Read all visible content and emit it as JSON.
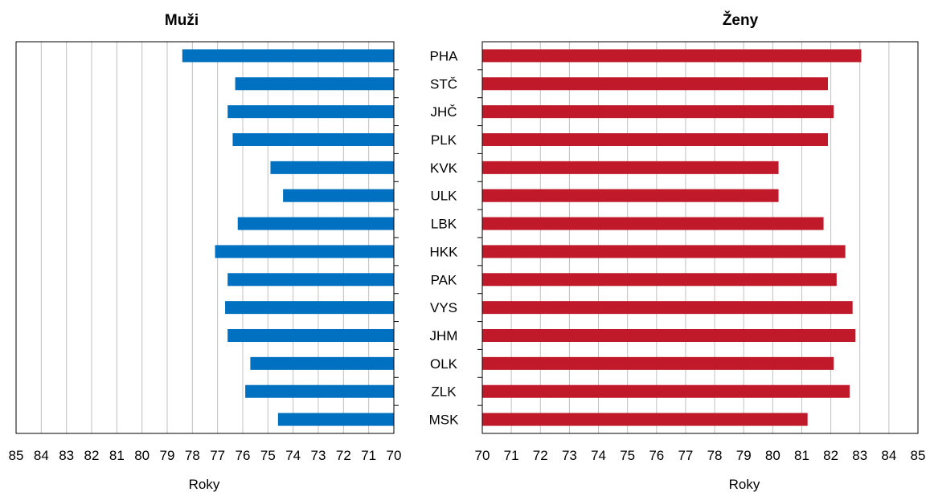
{
  "chart_data": [
    {
      "type": "bar",
      "orientation": "horizontal",
      "x_reversed": true,
      "title": "Muži",
      "xlabel": "Roky",
      "xlim": [
        70,
        85
      ],
      "xticks": [
        "85",
        "84",
        "83",
        "82",
        "81",
        "80",
        "79",
        "78",
        "77",
        "76",
        "75",
        "74",
        "73",
        "72",
        "71",
        "70"
      ],
      "grid": true,
      "color": "#0070c0",
      "categories": [
        "PHA",
        "STČ",
        "JHČ",
        "PLK",
        "KVK",
        "ULK",
        "LBK",
        "HKK",
        "PAK",
        "VYS",
        "JHM",
        "OLK",
        "ZLK",
        "MSK"
      ],
      "values": [
        78.4,
        76.3,
        76.6,
        76.4,
        74.9,
        74.4,
        76.2,
        77.1,
        76.6,
        76.7,
        76.6,
        75.7,
        75.9,
        74.6
      ]
    },
    {
      "type": "bar",
      "orientation": "horizontal",
      "title": "Ženy",
      "xlabel": "Roky",
      "xlim": [
        70,
        85
      ],
      "xticks": [
        "70",
        "71",
        "72",
        "73",
        "74",
        "75",
        "76",
        "77",
        "78",
        "79",
        "80",
        "81",
        "82",
        "83",
        "84",
        "85"
      ],
      "grid": true,
      "color": "#c0192a",
      "categories": [
        "PHA",
        "STČ",
        "JHČ",
        "PLK",
        "KVK",
        "ULK",
        "LBK",
        "HKK",
        "PAK",
        "VYS",
        "JHM",
        "OLK",
        "ZLK",
        "MSK"
      ],
      "values": [
        83.05,
        81.9,
        82.1,
        81.9,
        80.2,
        80.2,
        81.75,
        82.5,
        82.2,
        82.75,
        82.85,
        82.1,
        82.65,
        81.2
      ]
    }
  ]
}
